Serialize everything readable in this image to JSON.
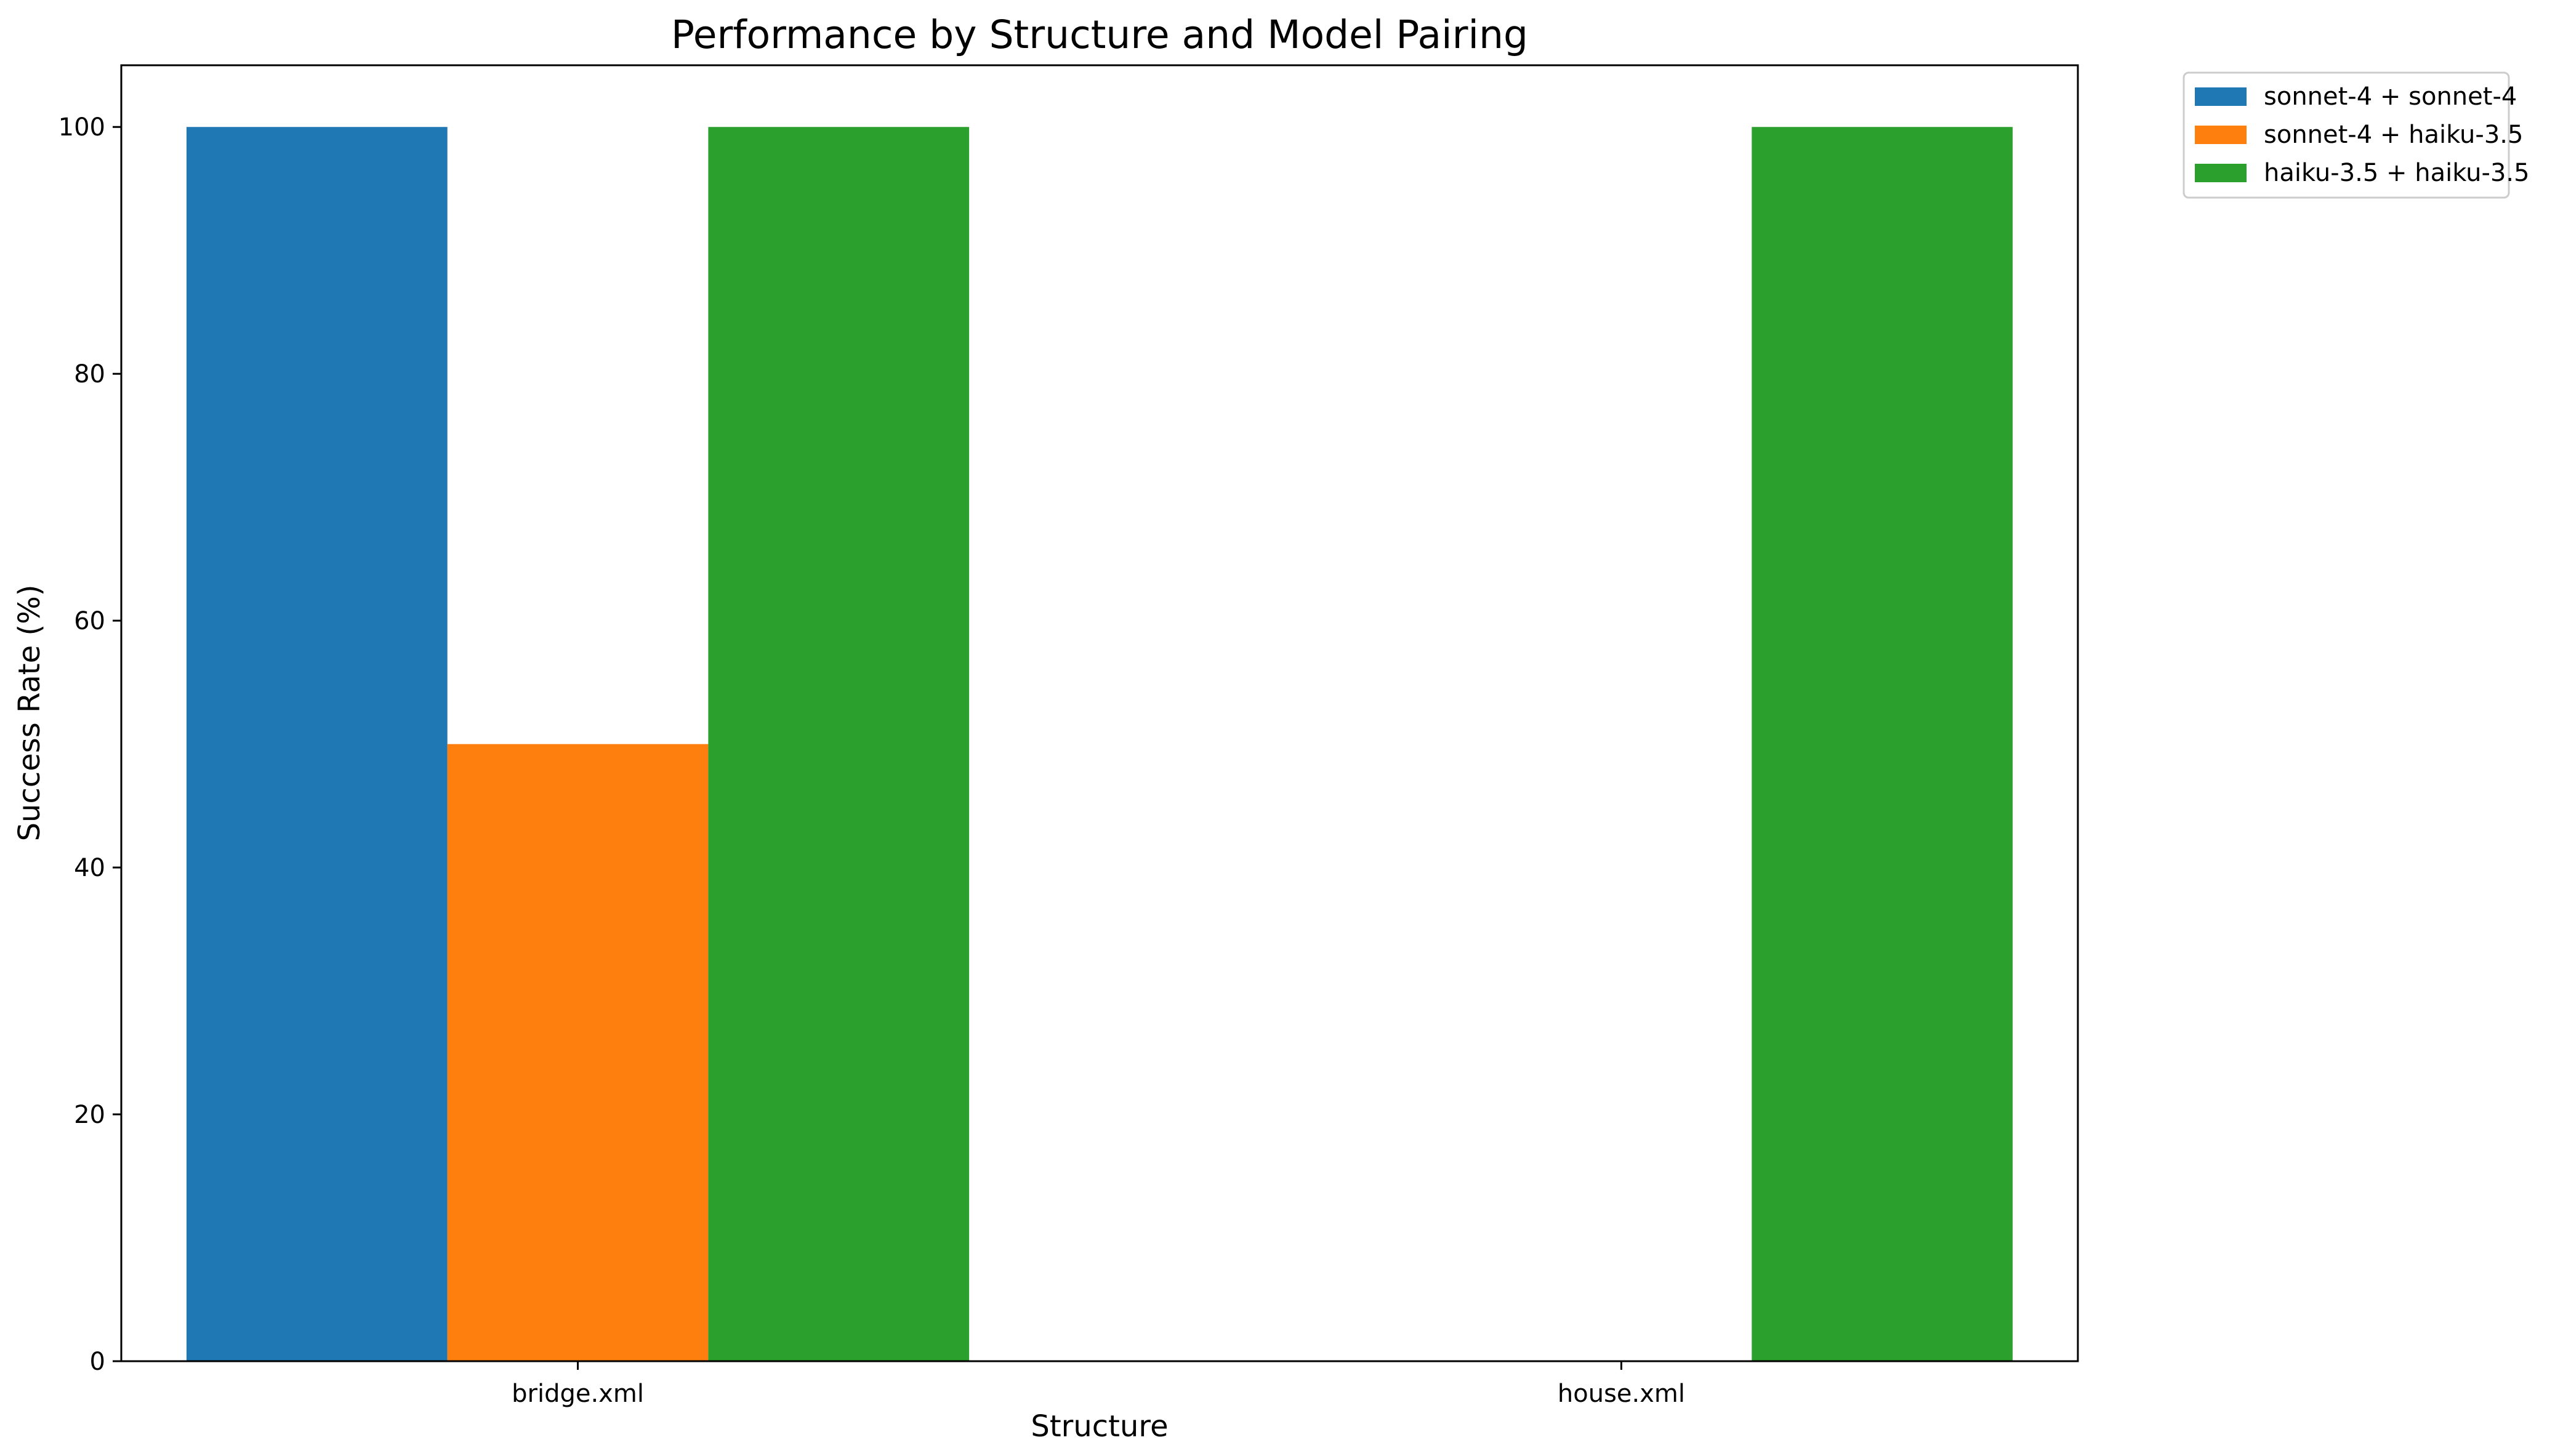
{
  "chart_data": {
    "type": "bar",
    "title": "Performance by Structure and Model Pairing",
    "xlabel": "Structure",
    "ylabel": "Success Rate (%)",
    "categories": [
      "bridge.xml",
      "house.xml"
    ],
    "series": [
      {
        "name": "sonnet-4 + sonnet-4",
        "values": [
          100,
          0
        ],
        "color": "#1f77b4"
      },
      {
        "name": "sonnet-4 + haiku-3.5",
        "values": [
          50,
          0
        ],
        "color": "#ff7f0e"
      },
      {
        "name": "haiku-3.5 + haiku-3.5",
        "values": [
          100,
          100
        ],
        "color": "#2ca02c"
      }
    ],
    "ylim": [
      0,
      105
    ],
    "yticks": [
      "0",
      "20",
      "40",
      "60",
      "80",
      "100"
    ],
    "grid": false,
    "legend_position": "outside-top-right"
  }
}
